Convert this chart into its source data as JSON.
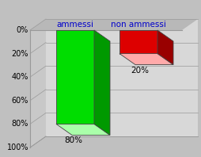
{
  "categories": [
    "ammessi",
    "non ammessi"
  ],
  "values": [
    80,
    20
  ],
  "bar_colors": [
    "#00dd00",
    "#dd0000"
  ],
  "bar_top_colors": [
    "#aaffaa",
    "#ffaaaa"
  ],
  "bar_side_colors": [
    "#009900",
    "#990000"
  ],
  "label_texts": [
    "80%",
    "20%"
  ],
  "ylim": [
    0,
    100
  ],
  "yticks": [
    0,
    20,
    40,
    60,
    80,
    100
  ],
  "ytick_labels": [
    "0%",
    "20%",
    "40%",
    "60%",
    "80%",
    "100%"
  ],
  "bg_outer": "#c0c0c0",
  "bg_wall": "#d8d8d8",
  "bg_floor": "#b8b8b8",
  "bg_wall_left": "#c8c8c8",
  "line_color": "#999999",
  "label_fontsize": 7.5,
  "tick_fontsize": 7,
  "cat_fontsize": 7.5,
  "cat_color": "#0000cc"
}
